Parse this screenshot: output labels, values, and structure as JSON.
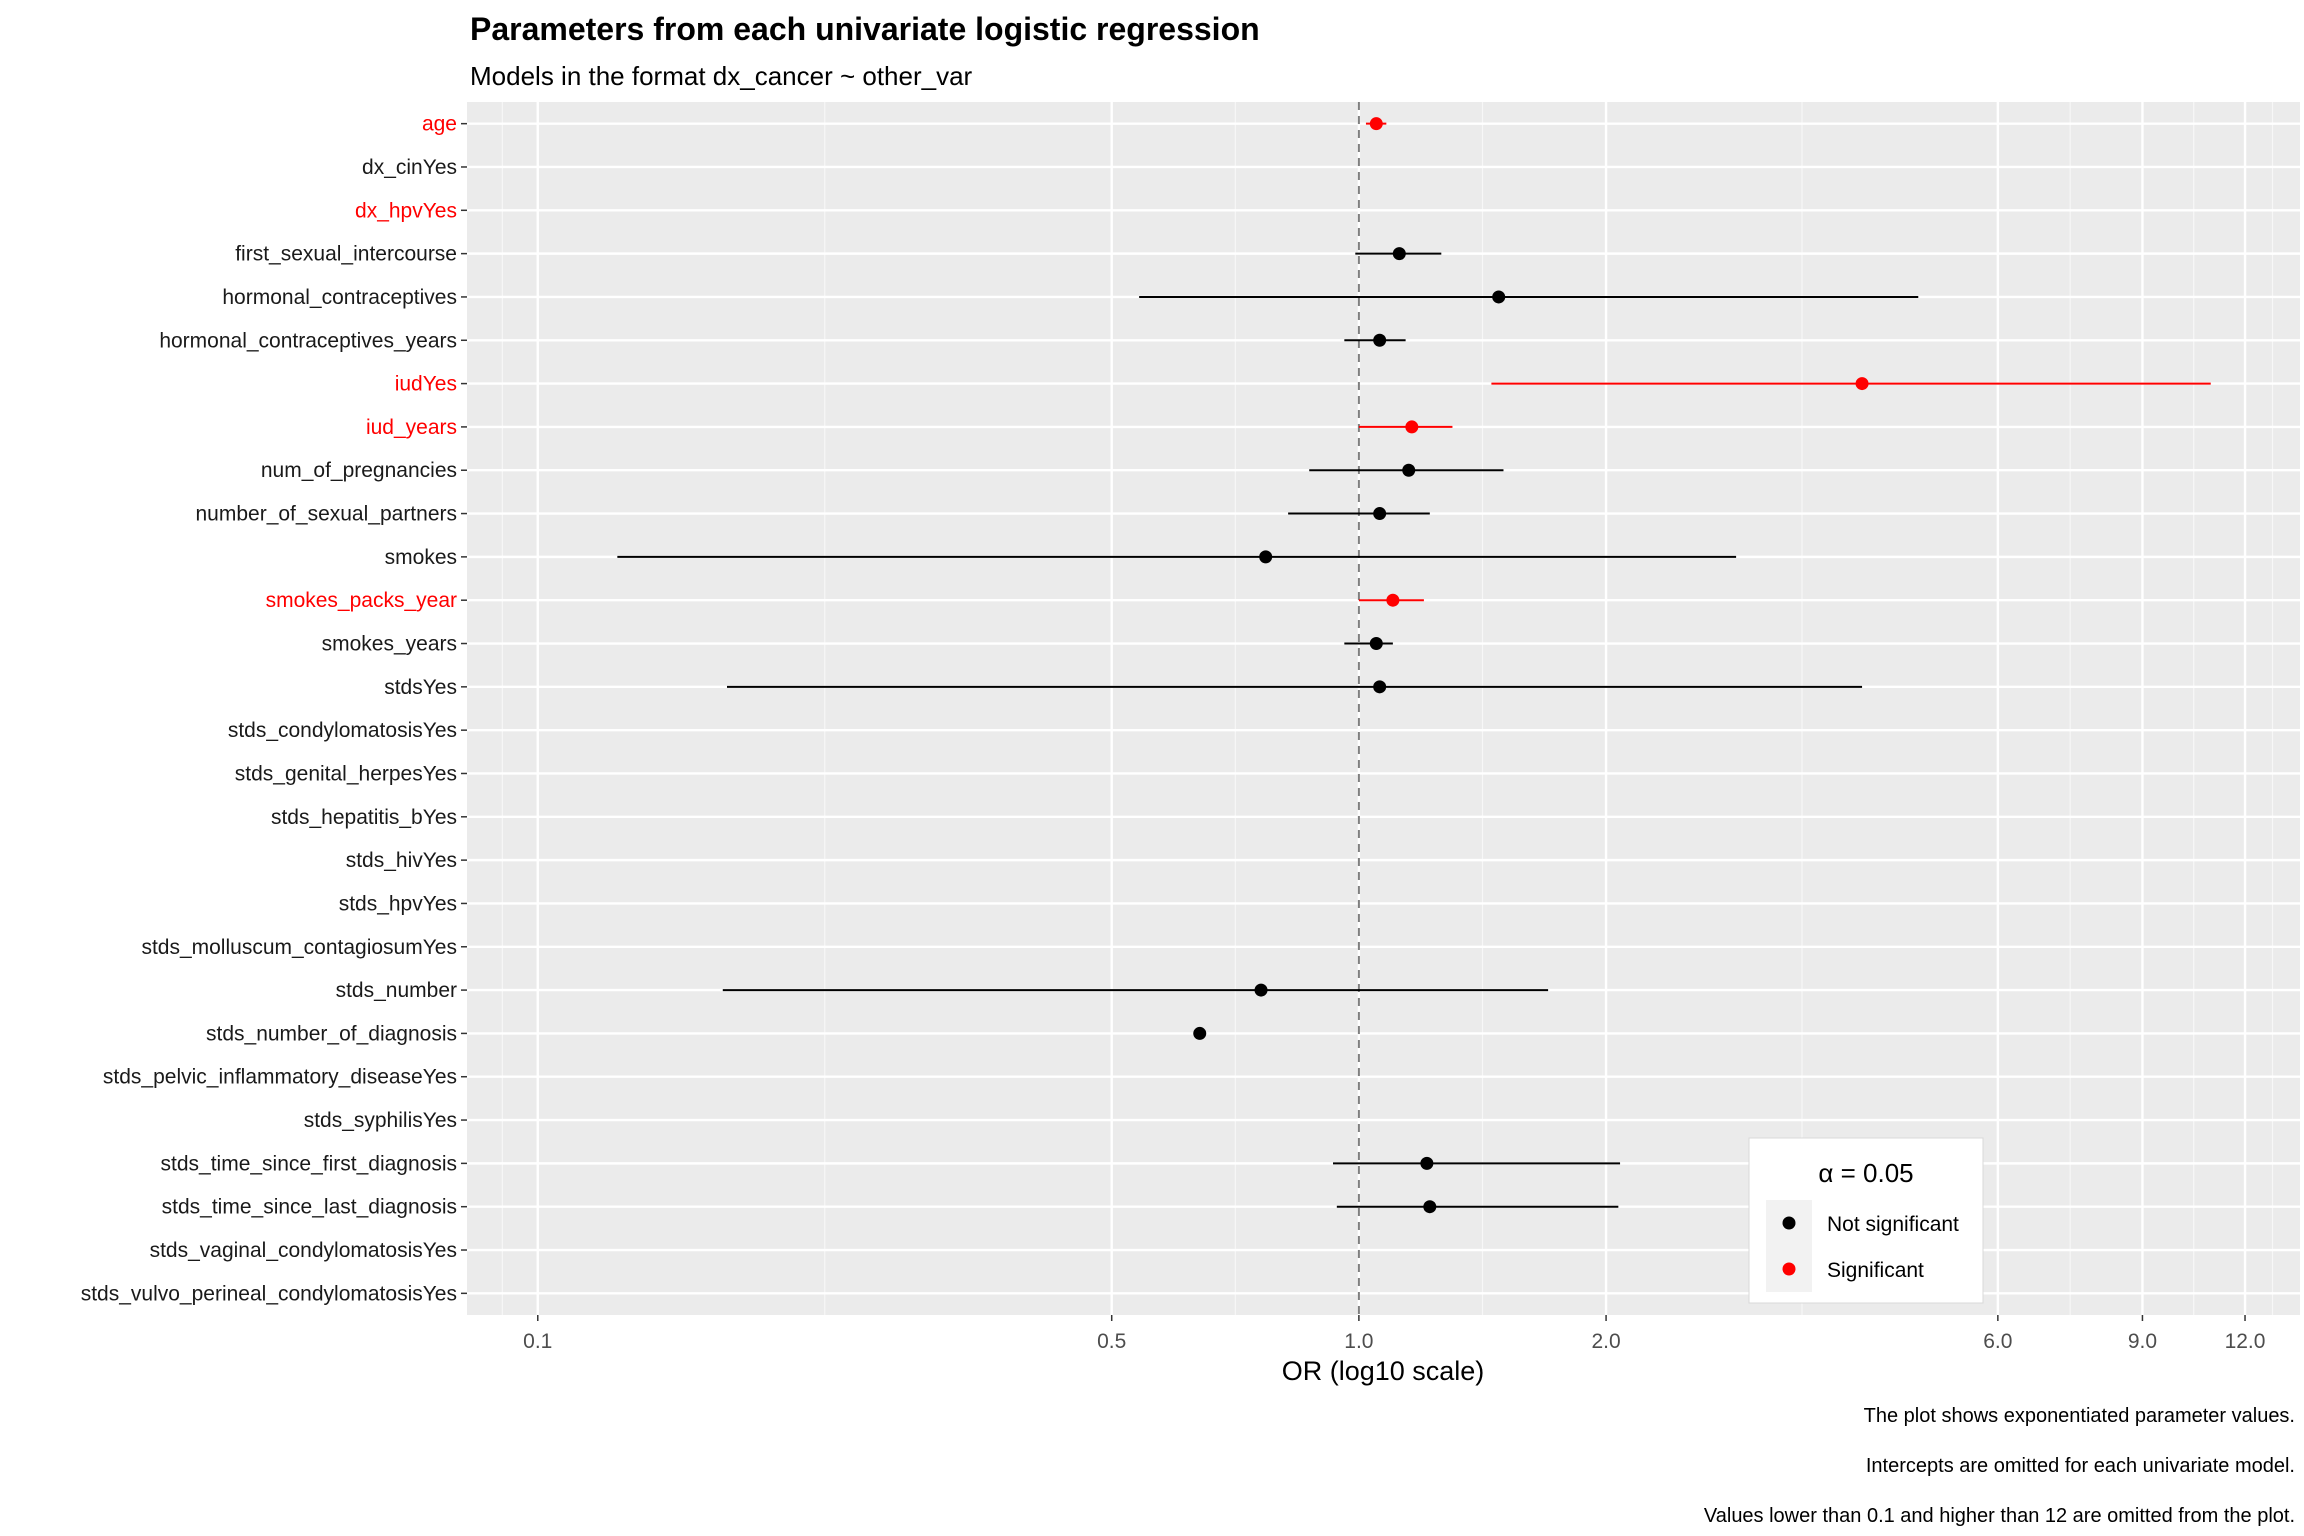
{
  "chart_data": {
    "type": "scatter",
    "title": "Parameters from each univariate logistic regression",
    "subtitle": "Models in the format dx_cancer ~ other_var",
    "xlabel": "OR (log10 scale)",
    "ylabel": "",
    "x_scale": "log10",
    "xlim": [
      0.082,
      14.0
    ],
    "x_ticks": [
      0.1,
      0.5,
      1.0,
      2.0,
      6.0,
      9.0,
      12.0
    ],
    "x_tick_labels": [
      "0.1",
      "0.5",
      "1.0",
      "2.0",
      "6.0",
      "9.0",
      "12.0"
    ],
    "reference_line": 1.0,
    "grid": true,
    "categories": [
      "age",
      "dx_cinYes",
      "dx_hpvYes",
      "first_sexual_intercourse",
      "hormonal_contraceptives",
      "hormonal_contraceptives_years",
      "iudYes",
      "iud_years",
      "num_of_pregnancies",
      "number_of_sexual_partners",
      "smokes",
      "smokes_packs_year",
      "smokes_years",
      "stdsYes",
      "stds_condylomatosisYes",
      "stds_genital_herpesYes",
      "stds_hepatitis_bYes",
      "stds_hivYes",
      "stds_hpvYes",
      "stds_molluscum_contagiosumYes",
      "stds_number",
      "stds_number_of_diagnosis",
      "stds_pelvic_inflammatory_diseaseYes",
      "stds_syphilisYes",
      "stds_time_since_first_diagnosis",
      "stds_time_since_last_diagnosis",
      "stds_vaginal_condylomatosisYes",
      "stds_vulvo_perineal_condylomatosisYes"
    ],
    "points": [
      {
        "label": "age",
        "or": 1.05,
        "lo": 1.02,
        "hi": 1.08,
        "significant": true
      },
      {
        "label": "dx_cinYes",
        "or": null,
        "lo": null,
        "hi": null,
        "significant": false
      },
      {
        "label": "dx_hpvYes",
        "or": null,
        "lo": null,
        "hi": null,
        "significant": true
      },
      {
        "label": "first_sexual_intercourse",
        "or": 1.12,
        "lo": 0.99,
        "hi": 1.26,
        "significant": false
      },
      {
        "label": "hormonal_contraceptives",
        "or": 1.48,
        "lo": 0.54,
        "hi": 4.8,
        "significant": false
      },
      {
        "label": "hormonal_contraceptives_years",
        "or": 1.06,
        "lo": 0.96,
        "hi": 1.14,
        "significant": false
      },
      {
        "label": "iudYes",
        "or": 4.1,
        "lo": 1.45,
        "hi": 10.9,
        "significant": true
      },
      {
        "label": "iud_years",
        "or": 1.16,
        "lo": 1.0,
        "hi": 1.3,
        "significant": true
      },
      {
        "label": "num_of_pregnancies",
        "or": 1.15,
        "lo": 0.87,
        "hi": 1.5,
        "significant": false
      },
      {
        "label": "number_of_sexual_partners",
        "or": 1.06,
        "lo": 0.82,
        "hi": 1.22,
        "significant": false
      },
      {
        "label": "smokes",
        "or": 0.77,
        "lo": 0.125,
        "hi": 2.88,
        "significant": false
      },
      {
        "label": "smokes_packs_year",
        "or": 1.1,
        "lo": 1.0,
        "hi": 1.2,
        "significant": true
      },
      {
        "label": "smokes_years",
        "or": 1.05,
        "lo": 0.96,
        "hi": 1.1,
        "significant": false
      },
      {
        "label": "stdsYes",
        "or": 1.06,
        "lo": 0.17,
        "hi": 4.1,
        "significant": false
      },
      {
        "label": "stds_condylomatosisYes",
        "or": null,
        "lo": null,
        "hi": null,
        "significant": false
      },
      {
        "label": "stds_genital_herpesYes",
        "or": null,
        "lo": null,
        "hi": null,
        "significant": false
      },
      {
        "label": "stds_hepatitis_bYes",
        "or": null,
        "lo": null,
        "hi": null,
        "significant": false
      },
      {
        "label": "stds_hivYes",
        "or": null,
        "lo": null,
        "hi": null,
        "significant": false
      },
      {
        "label": "stds_hpvYes",
        "or": null,
        "lo": null,
        "hi": null,
        "significant": false
      },
      {
        "label": "stds_molluscum_contagiosumYes",
        "or": null,
        "lo": null,
        "hi": null,
        "significant": false
      },
      {
        "label": "stds_number",
        "or": 0.76,
        "lo": 0.168,
        "hi": 1.7,
        "significant": false
      },
      {
        "label": "stds_number_of_diagnosis",
        "or": 0.64,
        "lo": null,
        "hi": null,
        "significant": false
      },
      {
        "label": "stds_pelvic_inflammatory_diseaseYes",
        "or": null,
        "lo": null,
        "hi": null,
        "significant": false
      },
      {
        "label": "stds_syphilisYes",
        "or": null,
        "lo": null,
        "hi": null,
        "significant": false
      },
      {
        "label": "stds_time_since_first_diagnosis",
        "or": 1.21,
        "lo": 0.93,
        "hi": 2.08,
        "significant": false
      },
      {
        "label": "stds_time_since_last_diagnosis",
        "or": 1.22,
        "lo": 0.94,
        "hi": 2.07,
        "significant": false
      },
      {
        "label": "stds_vaginal_condylomatosisYes",
        "or": null,
        "lo": null,
        "hi": null,
        "significant": false
      },
      {
        "label": "stds_vulvo_perineal_condylomatosisYes",
        "or": null,
        "lo": null,
        "hi": null,
        "significant": false
      }
    ],
    "legend": {
      "title": "α = 0.05",
      "position": "bottom-right inside",
      "entries": [
        {
          "label": "Not significant",
          "color": "#000000"
        },
        {
          "label": "Significant",
          "color": "#ff0000"
        }
      ]
    },
    "captions": [
      "The plot shows exponentiated parameter values.",
      "Intercepts are omitted for each univariate model.",
      "Values lower than 0.1 and higher than 12 are omitted from the plot."
    ],
    "colors": {
      "panel_background": "#ebebeb",
      "grid_line": "#ffffff",
      "not_significant": "#000000",
      "significant": "#ff0000",
      "reference_line": "#7f7f7f"
    }
  }
}
